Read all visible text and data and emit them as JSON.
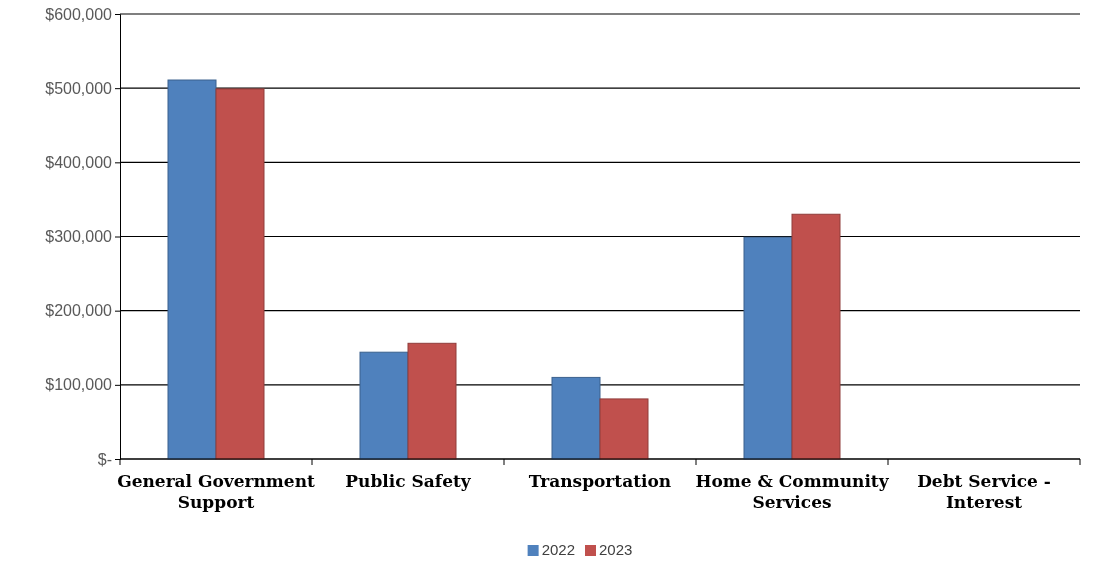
{
  "chart_data": {
    "type": "bar",
    "categories": [
      "General Government Support",
      "Public Safety",
      "Transportation",
      "Home & Community Services",
      "Debt Service - Interest"
    ],
    "series": [
      {
        "name": "2022",
        "color": "#4f81bd",
        "values": [
          511000,
          144000,
          110000,
          299000,
          null
        ]
      },
      {
        "name": "2023",
        "color": "#c0504d",
        "values": [
          499000,
          156000,
          81000,
          330000,
          0
        ]
      }
    ],
    "ylim": [
      0,
      600000
    ],
    "yticks": [
      {
        "value": 0,
        "label": "$-"
      },
      {
        "value": 100000,
        "label": "$100,000"
      },
      {
        "value": 200000,
        "label": "$200,000"
      },
      {
        "value": 300000,
        "label": "$300,000"
      },
      {
        "value": 400000,
        "label": "$400,000"
      },
      {
        "value": 500000,
        "label": "$500,000"
      },
      {
        "value": 600000,
        "label": "$600,000"
      }
    ],
    "grid": "y",
    "legend": "bottom"
  }
}
